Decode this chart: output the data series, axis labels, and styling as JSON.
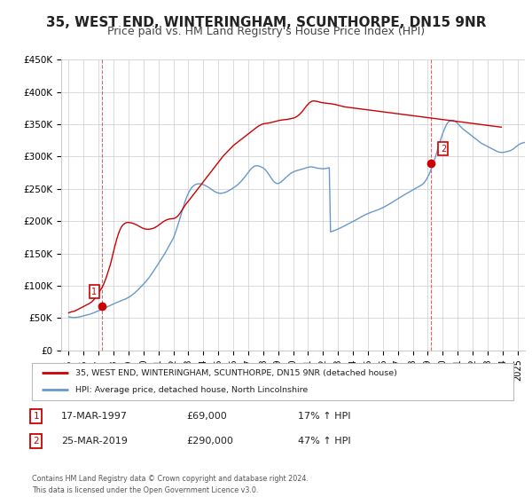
{
  "title": "35, WEST END, WINTERINGHAM, SCUNTHORPE, DN15 9NR",
  "subtitle": "Price paid vs. HM Land Registry's House Price Index (HPI)",
  "title_fontsize": 11,
  "subtitle_fontsize": 9,
  "background_color": "#ffffff",
  "grid_color": "#cccccc",
  "sale1_date": 1997.21,
  "sale1_price": 69000,
  "sale2_date": 2019.23,
  "sale2_price": 290000,
  "ylim": [
    0,
    450000
  ],
  "xlim": [
    1994.5,
    2025.5
  ],
  "yticks": [
    0,
    50000,
    100000,
    150000,
    200000,
    250000,
    300000,
    350000,
    400000,
    450000
  ],
  "ytick_labels": [
    "£0",
    "£50K",
    "£100K",
    "£150K",
    "£200K",
    "£250K",
    "£300K",
    "£350K",
    "£400K",
    "£450K"
  ],
  "xticks": [
    1995,
    1996,
    1997,
    1998,
    1999,
    2000,
    2001,
    2002,
    2003,
    2004,
    2005,
    2006,
    2007,
    2008,
    2009,
    2010,
    2011,
    2012,
    2013,
    2014,
    2015,
    2016,
    2017,
    2018,
    2019,
    2020,
    2021,
    2022,
    2023,
    2024,
    2025
  ],
  "red_line_color": "#cc0000",
  "blue_line_color": "#6699cc",
  "legend_label_red": "35, WEST END, WINTERINGHAM, SCUNTHORPE, DN15 9NR (detached house)",
  "legend_label_blue": "HPI: Average price, detached house, North Lincolnshire",
  "annotation1_label": "1",
  "annotation1_date": "17-MAR-1997",
  "annotation1_price": "£69,000",
  "annotation1_hpi": "17% ↑ HPI",
  "annotation2_label": "2",
  "annotation2_date": "25-MAR-2019",
  "annotation2_price": "£290,000",
  "annotation2_hpi": "47% ↑ HPI",
  "footer": "Contains HM Land Registry data © Crown copyright and database right 2024.\nThis data is licensed under the Open Government Licence v3.0.",
  "hpi_values": [
    52000,
    51500,
    51200,
    51000,
    50800,
    50900,
    51100,
    51300,
    51600,
    52000,
    52500,
    53000,
    53500,
    54000,
    54500,
    55000,
    55500,
    56000,
    56700,
    57400,
    58100,
    58900,
    59700,
    60500,
    61300,
    62100,
    63000,
    63900,
    64800,
    65700,
    66600,
    67500,
    68400,
    69300,
    70200,
    71100,
    72000,
    72800,
    73600,
    74400,
    75200,
    76000,
    76800,
    77600,
    78400,
    79200,
    80000,
    81000,
    82000,
    83200,
    84500,
    86000,
    87500,
    89000,
    90800,
    92600,
    94500,
    96500,
    98500,
    100500,
    102500,
    104500,
    106700,
    109000,
    111500,
    114000,
    116800,
    119600,
    122500,
    125500,
    128500,
    131500,
    134500,
    137500,
    140500,
    143500,
    146500,
    149500,
    153000,
    156500,
    160000,
    163500,
    167000,
    170500,
    174000,
    179000,
    184500,
    190500,
    196500,
    203000,
    209500,
    216000,
    222500,
    228500,
    234000,
    239000,
    243500,
    247000,
    250000,
    252500,
    254500,
    256000,
    257000,
    257500,
    257800,
    257900,
    257700,
    257200,
    256500,
    255700,
    254700,
    253700,
    252500,
    251300,
    249900,
    248500,
    247200,
    246000,
    245000,
    244200,
    243600,
    243300,
    243200,
    243300,
    243700,
    244200,
    244900,
    245700,
    246700,
    247800,
    249000,
    250200,
    251400,
    252700,
    254100,
    255600,
    257200,
    259000,
    261000,
    263100,
    265400,
    267800,
    270300,
    272900,
    275500,
    278000,
    280300,
    282300,
    283900,
    285000,
    285600,
    285700,
    285500,
    285000,
    284300,
    283400,
    282300,
    280800,
    278900,
    276600,
    273900,
    271000,
    268000,
    265100,
    262500,
    260400,
    259000,
    258300,
    258300,
    259000,
    260200,
    261800,
    263600,
    265500,
    267400,
    269200,
    270900,
    272500,
    273900,
    275100,
    276100,
    277000,
    277700,
    278300,
    278800,
    279300,
    279900,
    280400,
    281000,
    281600,
    282200,
    282800,
    283400,
    283800,
    284000,
    284000,
    283700,
    283300,
    282700,
    282100,
    282000,
    281800,
    281500,
    281200,
    281000,
    281200,
    281500,
    281900,
    282300,
    282800,
    183400,
    184000,
    184700,
    185400,
    186200,
    187000,
    187800,
    188700,
    189600,
    190500,
    191500,
    192500,
    193500,
    194500,
    195500,
    196500,
    197500,
    198500,
    199500,
    200500,
    201600,
    202700,
    203800,
    204900,
    206000,
    207100,
    208100,
    209100,
    210100,
    211000,
    211800,
    212600,
    213300,
    214000,
    214700,
    215400,
    216100,
    216800,
    217500,
    218300,
    219200,
    220100,
    221000,
    222000,
    223000,
    224100,
    225200,
    226300,
    227500,
    228700,
    229900,
    231100,
    232300,
    233500,
    234700,
    235900,
    237100,
    238300,
    239500,
    240600,
    241700,
    242800,
    243900,
    245000,
    246100,
    247200,
    248300,
    249400,
    250500,
    251600,
    252700,
    253800,
    254900,
    256000,
    257500,
    259500,
    262000,
    265000,
    268500,
    272500,
    277000,
    282000,
    287500,
    293000,
    299000,
    305000,
    311500,
    318000,
    324500,
    330500,
    336000,
    341000,
    345500,
    349500,
    352500,
    354500,
    355500,
    356000,
    356000,
    355500,
    354500,
    353000,
    351000,
    349000,
    347000,
    345000,
    343000,
    341500,
    340000,
    338500,
    337000,
    335500,
    334000,
    332500,
    331000,
    329500,
    328000,
    326500,
    325000,
    323500,
    322000,
    320500,
    319500,
    318500,
    317500,
    316500,
    315500,
    314500,
    313500,
    312500,
    311500,
    310500,
    309500,
    308500,
    307500,
    307000,
    306500,
    306500,
    306500,
    306500,
    307000,
    307500,
    308000,
    308500,
    309000,
    310000,
    311000,
    312500,
    314000,
    315500,
    317000,
    318500,
    319500,
    320500,
    321000,
    321500,
    322000
  ],
  "red_values": [
    58000,
    59000,
    59500,
    60000,
    60500,
    61000,
    62000,
    63000,
    64000,
    65000,
    66000,
    67000,
    68000,
    69000,
    70000,
    71000,
    72000,
    73000,
    74500,
    76000,
    78000,
    80500,
    83000,
    86000,
    89000,
    92000,
    95000,
    98000,
    102000,
    107000,
    112000,
    118000,
    124000,
    130000,
    137000,
    145000,
    153000,
    161000,
    168000,
    175000,
    181000,
    186000,
    190000,
    193000,
    195000,
    196500,
    197500,
    198000,
    198000,
    197800,
    197500,
    197000,
    196300,
    195600,
    194700,
    193700,
    192600,
    191500,
    190500,
    189500,
    188700,
    188100,
    187700,
    187500,
    187500,
    187700,
    188000,
    188500,
    189100,
    190000,
    191000,
    192200,
    193600,
    195000,
    196600,
    198000,
    199300,
    200500,
    201500,
    202300,
    202900,
    203400,
    203700,
    203900,
    204000,
    204500,
    205500,
    207000,
    209000,
    211500,
    214500,
    217500,
    220500,
    223500,
    226200,
    228700,
    231000,
    233500,
    236000,
    238500,
    241000,
    243500,
    246000,
    248500,
    251000,
    253500,
    256000,
    258500,
    261000,
    263500,
    266000,
    268500,
    271000,
    273500,
    276000,
    278500,
    281000,
    283500,
    286000,
    288500,
    291000,
    293500,
    296000,
    298500,
    301000,
    303000,
    305000,
    307000,
    309000,
    311000,
    313000,
    315000,
    317000,
    318500,
    320000,
    321500,
    323000,
    324500,
    326000,
    327500,
    329000,
    330500,
    332000,
    333500,
    335000,
    336500,
    338000,
    339500,
    341000,
    342500,
    344000,
    345500,
    346800,
    348000,
    349000,
    350000,
    350500,
    351000,
    351200,
    351500,
    351800,
    352000,
    352500,
    353000,
    353500,
    354000,
    354500,
    355000,
    355500,
    356000,
    356300,
    356500,
    356800,
    357000,
    357300,
    357500,
    357800,
    358000,
    358500,
    359000,
    359500,
    360000,
    361000,
    362000,
    363500,
    365000,
    367000,
    369000,
    371500,
    374000,
    376500,
    379000,
    381000,
    383000,
    384500,
    385500,
    386000,
    386000,
    385800,
    385500,
    385000,
    384500,
    384000,
    383500,
    383200,
    382900,
    382700,
    382500,
    382300,
    382000,
    381800,
    381500,
    381200,
    380900,
    380500,
    380000,
    379500,
    379000,
    378500,
    378000,
    377500,
    377000,
    376800,
    376500,
    376200,
    376000,
    375800,
    375500,
    375200,
    375000,
    374800,
    374500,
    374200,
    374000,
    373800,
    373500,
    373200,
    373000,
    372800,
    372500,
    372200,
    372000,
    371800,
    371500,
    371200,
    371000,
    370800,
    370500,
    370200,
    370000,
    369800,
    369500,
    369200,
    369000,
    368800,
    368500,
    368200,
    368000,
    367800,
    367500,
    367200,
    367000,
    366800,
    366500,
    366200,
    366000,
    365800,
    365500,
    365200,
    365000,
    364800,
    364500,
    364200,
    364000,
    363800,
    363500,
    363200,
    363000,
    362800,
    362500,
    362200,
    362000,
    361800,
    361500,
    361200,
    361000,
    360800,
    360500,
    360200,
    360000,
    359800,
    359500,
    359200,
    359000,
    358800,
    358500,
    358200,
    358000,
    357800,
    357500,
    357200,
    357000,
    356800,
    356500,
    356200,
    356000,
    355800,
    355500,
    355200,
    355000,
    354800,
    354500,
    354200,
    354000,
    353800,
    353500,
    353200,
    353000,
    352800,
    352500,
    352200,
    352000,
    351800,
    351500,
    351200,
    351000,
    350800,
    350500,
    350200,
    350000,
    349800,
    349500,
    349200,
    349000,
    348800,
    348500,
    348200,
    348000,
    347800,
    347500,
    347200,
    347000,
    346800,
    346500,
    346200,
    346000,
    345800,
    345500
  ],
  "hpi_start": 1995.0,
  "hpi_step": 0.08333,
  "red_start": 1995.0,
  "red_step": 0.08333
}
